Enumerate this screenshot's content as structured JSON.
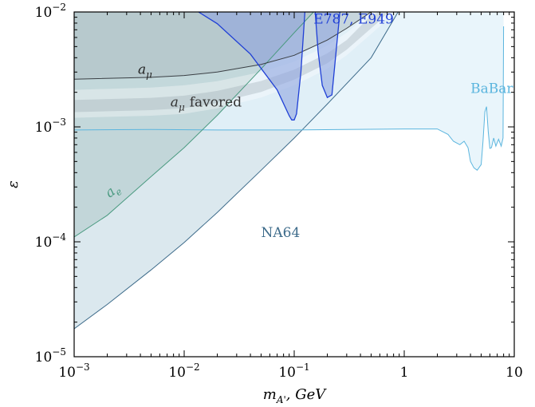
{
  "chart_data": {
    "type": "area",
    "xlabel": "m_{A'}, GeV",
    "ylabel": "ε",
    "x_scale": "log",
    "y_scale": "log",
    "xlim": [
      0.001,
      10
    ],
    "ylim": [
      1e-05,
      0.01
    ],
    "x_ticks": [
      {
        "value": 0.001,
        "label": "10",
        "exp": "−3"
      },
      {
        "value": 0.01,
        "label": "10",
        "exp": "−2"
      },
      {
        "value": 0.1,
        "label": "10",
        "exp": "−1"
      },
      {
        "value": 1,
        "label": "1",
        "exp": ""
      },
      {
        "value": 10,
        "label": "10",
        "exp": ""
      }
    ],
    "y_ticks": [
      {
        "value": 1e-05,
        "label": "10",
        "exp": "−5"
      },
      {
        "value": 0.0001,
        "label": "10",
        "exp": "−4"
      },
      {
        "value": 0.001,
        "label": "10",
        "exp": "−3"
      },
      {
        "value": 0.01,
        "label": "10",
        "exp": "−2"
      }
    ],
    "grid": false,
    "regions": [
      {
        "name": "NA64",
        "color": "#3d6b8a",
        "fill": "#cfe0e8",
        "label_at": [
          0.05,
          0.00011
        ],
        "boundary": [
          [
            0.001,
            1.75e-05
          ],
          [
            0.002,
            2.85e-05
          ],
          [
            0.005,
            5.7e-05
          ],
          [
            0.01,
            9.85e-05
          ],
          [
            0.02,
            0.00018
          ],
          [
            0.05,
            0.00042
          ],
          [
            0.1,
            0.0008
          ],
          [
            0.2,
            0.00158
          ],
          [
            0.5,
            0.004
          ],
          [
            0.88,
            0.01
          ]
        ]
      },
      {
        "name": "BaBar",
        "color": "#5bb5de",
        "fill": "#e2f1fa",
        "label_at": [
          4.0,
          0.00198
        ],
        "boundary": [
          [
            0.001,
            0.00094
          ],
          [
            0.005,
            0.00095
          ],
          [
            0.02,
            0.00094
          ],
          [
            0.1,
            0.00094
          ],
          [
            0.3,
            0.00095
          ],
          [
            1.0,
            0.00096
          ],
          [
            2.0,
            0.00096
          ],
          [
            2.5,
            0.00086
          ],
          [
            2.8,
            0.00075
          ],
          [
            3.2,
            0.0007
          ],
          [
            3.5,
            0.00075
          ],
          [
            3.8,
            0.00066
          ],
          [
            4.0,
            0.0005
          ],
          [
            4.3,
            0.00044
          ],
          [
            4.6,
            0.00042
          ],
          [
            5.0,
            0.00047
          ],
          [
            5.2,
            0.00075
          ],
          [
            5.4,
            0.00135
          ],
          [
            5.6,
            0.0015
          ],
          [
            5.8,
            0.0009
          ],
          [
            6.0,
            0.00065
          ],
          [
            6.2,
            0.00066
          ],
          [
            6.5,
            0.0008
          ],
          [
            6.8,
            0.00068
          ],
          [
            7.2,
            0.00078
          ],
          [
            7.6,
            0.00068
          ],
          [
            7.9,
            0.0008
          ],
          [
            8.0,
            0.0075
          ]
        ]
      },
      {
        "name": "a_e",
        "color": "#4a9a80",
        "fill": "#b9d0d2",
        "label_at": [
          0.0021,
          0.00024
        ],
        "boundary": [
          [
            0.001,
            0.00011
          ],
          [
            0.002,
            0.00017
          ],
          [
            0.005,
            0.00037
          ],
          [
            0.01,
            0.00066
          ],
          [
            0.02,
            0.00126
          ],
          [
            0.05,
            0.0032
          ],
          [
            0.1,
            0.0066
          ],
          [
            0.15,
            0.01
          ]
        ]
      },
      {
        "name": "a_mu",
        "color": "#3a3f44",
        "label_at": [
          0.0038,
          0.0029
        ],
        "boundary": [
          [
            0.001,
            0.0026
          ],
          [
            0.005,
            0.0027
          ],
          [
            0.01,
            0.0028
          ],
          [
            0.02,
            0.003
          ],
          [
            0.05,
            0.0035
          ],
          [
            0.1,
            0.0042
          ],
          [
            0.2,
            0.0057
          ],
          [
            0.3,
            0.0072
          ],
          [
            0.5,
            0.01
          ]
        ]
      },
      {
        "name": "a_mu favored",
        "color": "#8a96a3",
        "label_at": [
          0.0075,
          0.0015
        ],
        "upper": [
          [
            0.001,
            0.0021
          ],
          [
            0.005,
            0.0022
          ],
          [
            0.01,
            0.0023
          ],
          [
            0.02,
            0.0025
          ],
          [
            0.05,
            0.003
          ],
          [
            0.1,
            0.0037
          ],
          [
            0.2,
            0.0051
          ],
          [
            0.3,
            0.0066
          ],
          [
            0.5,
            0.01
          ]
        ],
        "lower": [
          [
            0.001,
            0.0012
          ],
          [
            0.005,
            0.00125
          ],
          [
            0.01,
            0.0013
          ],
          [
            0.02,
            0.00145
          ],
          [
            0.05,
            0.0018
          ],
          [
            0.1,
            0.0023
          ],
          [
            0.2,
            0.0032
          ],
          [
            0.3,
            0.0042
          ],
          [
            0.6,
            0.0075
          ],
          [
            0.8,
            0.01
          ]
        ]
      },
      {
        "name": "E787, E949",
        "color": "#1f3fd6",
        "fill": "#8fa5e0",
        "label_at": [
          0.15,
          0.0079
        ],
        "boundary": [
          [
            0.0135,
            0.01
          ],
          [
            0.02,
            0.0079
          ],
          [
            0.04,
            0.0043
          ],
          [
            0.07,
            0.0021
          ],
          [
            0.09,
            0.00125
          ],
          [
            0.095,
            0.00115
          ],
          [
            0.1,
            0.00115
          ],
          [
            0.105,
            0.0013
          ],
          [
            0.115,
            0.003
          ],
          [
            0.125,
            0.01
          ]
        ],
        "boundary2": [
          [
            0.155,
            0.01
          ],
          [
            0.165,
            0.0045
          ],
          [
            0.18,
            0.0023
          ],
          [
            0.2,
            0.0018
          ],
          [
            0.22,
            0.0019
          ],
          [
            0.24,
            0.0045
          ],
          [
            0.26,
            0.01
          ]
        ]
      }
    ]
  }
}
